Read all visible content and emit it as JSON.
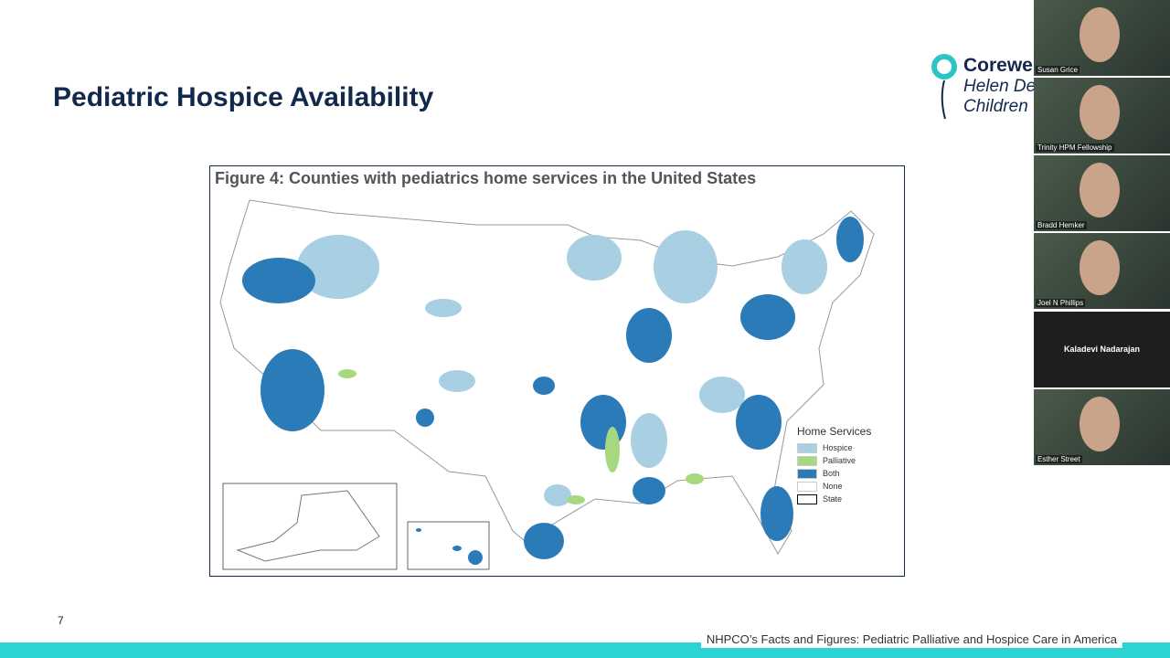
{
  "slide": {
    "title": "Pediatric Hospice Availability",
    "page_number": "7",
    "source": "NHPCO’s Facts and Figures: Pediatric Palliative and Hospice Care in America",
    "logo": [
      "Corewe",
      "Helen De",
      "Children"
    ]
  },
  "figure": {
    "title": "Figure 4: Counties with pediatrics home services in the United States",
    "legend": {
      "title": "Home Services",
      "items": [
        {
          "label": "Hospice",
          "color": "#a8cfe2"
        },
        {
          "label": "Palliative",
          "color": "#a6d97f"
        },
        {
          "label": "Both",
          "color": "#2b7bb9"
        },
        {
          "label": "None",
          "color": "#ffffff"
        },
        {
          "label": "State",
          "color": "#ffffff"
        }
      ]
    }
  },
  "participants": [
    {
      "name": "Susan Grice",
      "video": true
    },
    {
      "name": "Trinity HPM Fellowship",
      "video": true
    },
    {
      "name": "Bradd Hemker",
      "video": true
    },
    {
      "name": "Joel N Phillips",
      "video": true
    },
    {
      "name": "Kaladevi Nadarajan",
      "video": false
    },
    {
      "name": "Esther Street",
      "video": true
    }
  ]
}
